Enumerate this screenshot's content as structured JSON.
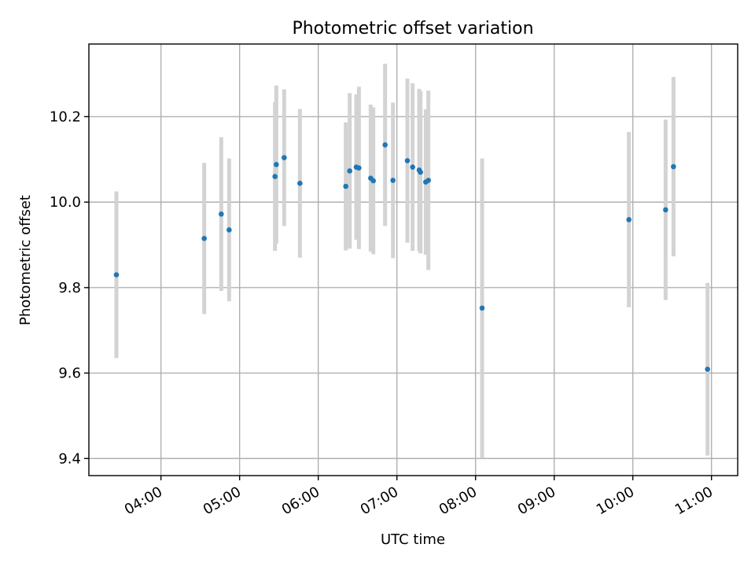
{
  "chart_data": {
    "type": "scatter",
    "title": "Photometric offset variation",
    "xlabel": "UTC time",
    "ylabel": "Photometric offset",
    "xlim": [
      "03:05",
      "11:20"
    ],
    "ylim": [
      9.36,
      10.37
    ],
    "x_ticks": [
      "04:00",
      "05:00",
      "06:00",
      "07:00",
      "08:00",
      "09:00",
      "10:00",
      "11:00"
    ],
    "y_ticks": [
      "9.4",
      "9.6",
      "9.8",
      "10.0",
      "10.2"
    ],
    "grid": true,
    "series": [
      {
        "marker_color": "#1f77b4",
        "errorbar_color": "#d3d3d3",
        "points": [
          {
            "t": "03:26",
            "y": 9.83,
            "err": 0.195
          },
          {
            "t": "04:33",
            "y": 9.915,
            "err": 0.177
          },
          {
            "t": "04:46",
            "y": 9.972,
            "err": 0.18
          },
          {
            "t": "04:52",
            "y": 9.935,
            "err": 0.167
          },
          {
            "t": "05:27",
            "y": 10.06,
            "err": 0.174
          },
          {
            "t": "05:28",
            "y": 10.088,
            "err": 0.185
          },
          {
            "t": "05:34",
            "y": 10.104,
            "err": 0.16
          },
          {
            "t": "05:46",
            "y": 10.044,
            "err": 0.174
          },
          {
            "t": "06:21",
            "y": 10.037,
            "err": 0.15
          },
          {
            "t": "06:24",
            "y": 10.073,
            "err": 0.182
          },
          {
            "t": "06:29",
            "y": 10.082,
            "err": 0.17
          },
          {
            "t": "06:31",
            "y": 10.08,
            "err": 0.19
          },
          {
            "t": "06:40",
            "y": 10.056,
            "err": 0.172
          },
          {
            "t": "06:42",
            "y": 10.05,
            "err": 0.172
          },
          {
            "t": "06:51",
            "y": 10.134,
            "err": 0.19
          },
          {
            "t": "06:57",
            "y": 10.051,
            "err": 0.182
          },
          {
            "t": "07:08",
            "y": 10.097,
            "err": 0.192
          },
          {
            "t": "07:12",
            "y": 10.082,
            "err": 0.196
          },
          {
            "t": "07:17",
            "y": 10.075,
            "err": 0.19
          },
          {
            "t": "07:18",
            "y": 10.07,
            "err": 0.19
          },
          {
            "t": "07:22",
            "y": 10.047,
            "err": 0.17
          },
          {
            "t": "07:24",
            "y": 10.051,
            "err": 0.21
          },
          {
            "t": "08:05",
            "y": 9.752,
            "err": 0.35
          },
          {
            "t": "09:57",
            "y": 9.959,
            "err": 0.205
          },
          {
            "t": "10:25",
            "y": 9.982,
            "err": 0.211
          },
          {
            "t": "10:31",
            "y": 10.083,
            "err": 0.21
          },
          {
            "t": "10:57",
            "y": 9.609,
            "err": 0.202
          }
        ]
      }
    ]
  }
}
